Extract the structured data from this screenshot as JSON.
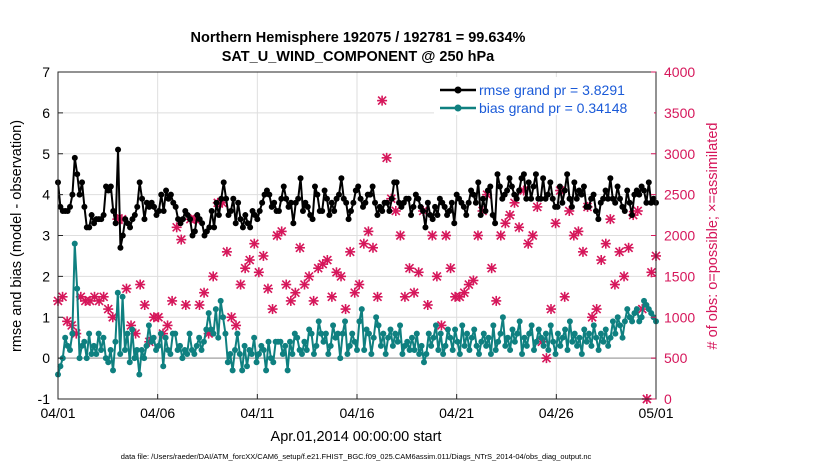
{
  "chart_data": {
    "type": "line",
    "title": "Northern Hemisphere 192075 / 192781 = 99.634%",
    "subtitle": "SAT_U_WIND_COMPONENT @ 250 hPa",
    "xlabel": "Apr.01,2014 00:00:00 start",
    "ylabel": "rmse and bias (model - observation)",
    "y2label": "# of obs: o=possible; ×=assimilated",
    "footer": "data file: /Users/raeder/DAI/ATM_forcXX/CAM6_setup/f.e21.FHIST_BGC.f09_025.CAM6assim.011/Diags_NTrS_2014-04/obs_diag_output.nc",
    "xticks": [
      "04/01",
      "04/06",
      "04/11",
      "04/16",
      "04/21",
      "04/26",
      "05/01"
    ],
    "xlim": [
      0,
      30
    ],
    "ylim": [
      -1,
      7
    ],
    "yticks": [
      "-1",
      "0",
      "1",
      "2",
      "3",
      "4",
      "5",
      "6",
      "7"
    ],
    "y2lim": [
      0,
      4000
    ],
    "y2ticks": [
      "0",
      "500",
      "1000",
      "1500",
      "2000",
      "2500",
      "3000",
      "3500",
      "4000"
    ],
    "grid": true,
    "legend_position": "top-right",
    "colors": {
      "rmse": "#000000",
      "bias": "#0f8080",
      "obs": "#d6175b",
      "zero_line": "#b0b0b0",
      "legend_text": "#1a5ad8"
    },
    "series": [
      {
        "name": "rmse",
        "legend": "rmse grand pr = 3.8291",
        "values": [
          4.3,
          3.7,
          3.6,
          3.6,
          3.6,
          3.7,
          4.0,
          4.9,
          4.5,
          4.0,
          4.3,
          3.7,
          3.2,
          3.2,
          3.5,
          3.3,
          3.4,
          3.4,
          3.4,
          3.5,
          4.2,
          4.1,
          4.2,
          3.6,
          3.3,
          5.1,
          2.7,
          3.0,
          3.4,
          3.3,
          3.2,
          3.4,
          3.5,
          3.7,
          4.3,
          3.9,
          3.4,
          3.8,
          3.7,
          3.8,
          3.7,
          3.5,
          3.6,
          4.0,
          3.6,
          4.1,
          3.9,
          4.0,
          3.8,
          3.7,
          3.4,
          3.3,
          3.4,
          3.6,
          3.5,
          3.4,
          3.0,
          3.1,
          3.5,
          3.4,
          3.3,
          3.0,
          3.1,
          3.2,
          3.6,
          3.2,
          3.8,
          3.5,
          3.9,
          4.3,
          3.9,
          3.5,
          3.6,
          3.9,
          3.3,
          3.8,
          3.4,
          3.2,
          3.5,
          3.3,
          3.2,
          3.6,
          3.5,
          3.4,
          3.6,
          3.8,
          4.0,
          4.1,
          4.0,
          3.7,
          3.8,
          3.6,
          3.6,
          3.9,
          4.2,
          3.9,
          3.7,
          3.8,
          3.3,
          3.8,
          3.9,
          4.4,
          3.6,
          3.8,
          3.7,
          3.5,
          3.4,
          4.2,
          4.0,
          3.6,
          3.6,
          4.1,
          3.9,
          3.5,
          3.8,
          3.6,
          3.9,
          4.0,
          4.4,
          3.9,
          3.8,
          3.4,
          3.6,
          3.8,
          4.1,
          4.2,
          3.9,
          3.7,
          3.8,
          4.0,
          4.0,
          4.2,
          3.8,
          3.5,
          3.7,
          3.6,
          3.8,
          3.8,
          3.6,
          3.9,
          4.3,
          4.3,
          3.8,
          3.7,
          3.8,
          3.9,
          3.9,
          3.5,
          3.7,
          4.0,
          3.9,
          3.7,
          3.6,
          3.2,
          3.8,
          3.5,
          3.4,
          3.7,
          3.5,
          3.9,
          3.8,
          3.7,
          3.5,
          3.6,
          3.8,
          3.3,
          4.0,
          3.9,
          3.8,
          3.7,
          3.5,
          3.8,
          4.1,
          4.0,
          3.8,
          4.3,
          3.5,
          3.9,
          3.6,
          4.1,
          4.2,
          3.5,
          3.3,
          4.5,
          4.2,
          3.9,
          4.0,
          4.1,
          4.4,
          4.2,
          4.0,
          3.9,
          4.1,
          4.4,
          4.5,
          3.9,
          4.3,
          3.9,
          4.2,
          4.5,
          3.9,
          3.9,
          4.4,
          3.9,
          4.0,
          4.3,
          3.9,
          3.7,
          3.7,
          4.2,
          3.8,
          4.1,
          4.5,
          3.9,
          3.7,
          4.3,
          3.9,
          4.1,
          4.0,
          4.2,
          3.7,
          3.7,
          3.9,
          4.0,
          3.6,
          3.4,
          3.8,
          3.9,
          4.1,
          3.9,
          4.4,
          3.9,
          3.8,
          4.2,
          3.9,
          3.7,
          3.6,
          4.1,
          3.8,
          3.5,
          4.0,
          4.1,
          4.0,
          4.2,
          4.1,
          3.8,
          4.3,
          3.8,
          3.9,
          3.8
        ]
      },
      {
        "name": "bias",
        "legend": "bias grand pr = 0.34148",
        "values": [
          -0.4,
          -0.2,
          0.0,
          0.5,
          0.3,
          0.2,
          0.6,
          2.8,
          1.7,
          0.0,
          0.3,
          0.4,
          0.0,
          0.6,
          0.1,
          0.3,
          0.1,
          0.6,
          0.2,
          0.5,
          0.0,
          -0.1,
          0.2,
          -0.3,
          0.4,
          1.6,
          0.1,
          1.5,
          0.2,
          0.6,
          -0.1,
          0.7,
          0.0,
          0.2,
          -0.4,
          0.2,
          0.0,
          0.3,
          0.8,
          0.4,
          0.5,
          0.2,
          0.3,
          0.6,
          -0.2,
          0.5,
          0.2,
          0.1,
          0.6,
          0.6,
          0.2,
          0.3,
          0.0,
          0.2,
          0.1,
          0.6,
          0.2,
          0.1,
          0.3,
          0.5,
          0.2,
          0.4,
          0.7,
          1.1,
          0.7,
          0.6,
          1.2,
          0.5,
          1.4,
          1.0,
          0.6,
          -0.1,
          0.1,
          -0.3,
          0.2,
          0.6,
          0.1,
          -0.3,
          0.3,
          -0.2,
          0.2,
          0.1,
          0.5,
          -0.1,
          0.1,
          0.3,
          0.2,
          -0.3,
          0.4,
          0.0,
          -0.1,
          0.4,
          0.4,
          0.4,
          0.1,
          0.3,
          -0.3,
          0.4,
          0.1,
          0.6,
          0.5,
          0.2,
          0.1,
          0.4,
          0.2,
          0.7,
          0.6,
          0.1,
          0.3,
          0.9,
          0.6,
          0.4,
          0.6,
          0.1,
          0.3,
          0.8,
          0.5,
          0.6,
          0.0,
          0.6,
          0.9,
          0.1,
          0.3,
          0.6,
          0.4,
          0.2,
          0.9,
          1.2,
          0.2,
          0.7,
          0.6,
          0.1,
          0.5,
          1.0,
          0.8,
          0.3,
          0.6,
          0.1,
          0.5,
          0.7,
          0.3,
          0.6,
          0.4,
          0.8,
          0.1,
          0.3,
          0.4,
          0.2,
          0.5,
          0.2,
          0.6,
          0.1,
          0.3,
          -0.1,
          0.1,
          0.6,
          0.3,
          0.5,
          0.8,
          0.2,
          0.6,
          0.1,
          0.3,
          0.7,
          0.5,
          0.2,
          0.7,
          0.4,
          0.1,
          0.8,
          0.3,
          0.6,
          0.2,
          0.5,
          0.7,
          0.3,
          0.1,
          0.4,
          0.6,
          0.3,
          0.5,
          0.1,
          0.8,
          0.2,
          0.4,
          0.6,
          1.0,
          0.3,
          0.5,
          0.2,
          0.7,
          0.4,
          0.6,
          0.9,
          0.1,
          0.5,
          0.3,
          0.6,
          0.8,
          0.2,
          0.4,
          0.7,
          0.5,
          0.3,
          0.6,
          0.2,
          0.8,
          0.4,
          0.1,
          0.6,
          0.3,
          0.5,
          0.7,
          0.2,
          0.9,
          0.4,
          0.6,
          0.3,
          0.5,
          0.1,
          0.7,
          0.4,
          0.6,
          0.3,
          0.8,
          0.5,
          0.2,
          0.6,
          0.4,
          0.7,
          0.3,
          0.5,
          0.9,
          0.6,
          1.0,
          0.8,
          0.5,
          0.9,
          1.2,
          1.0,
          0.9,
          1.1,
          1.2,
          0.9,
          1.0,
          1.4,
          1.3,
          1.2,
          1.1,
          1.0,
          0.9
        ]
      },
      {
        "name": "assimilated",
        "values": [
          1200,
          1250,
          950,
          900,
          800,
          1250,
          1200,
          1200,
          1250,
          1200,
          1250,
          1100,
          1000,
          2200,
          2200,
          1350,
          900,
          800,
          1400,
          1150,
          700,
          1000,
          1000,
          800,
          900,
          1200,
          2100,
          1950,
          1150,
          2200,
          2200,
          1150,
          1300,
          800,
          1500,
          2400,
          2400,
          1800,
          1000,
          900,
          1400,
          1600,
          1700,
          1900,
          1550,
          1750,
          1350,
          1100,
          2000,
          2050,
          1400,
          1200,
          1300,
          1850,
          1400,
          1500,
          1200,
          1600,
          1650,
          1700,
          1250,
          1550,
          1500,
          1100,
          1800,
          1300,
          1400,
          1900,
          2050,
          1850,
          1250,
          3650,
          2950,
          2450,
          2300,
          2000,
          1250,
          1600,
          1300,
          1550,
          2300,
          1150,
          2000,
          1500,
          900,
          2000,
          1600,
          1250,
          1250,
          1300,
          1400,
          1450,
          2000,
          2300,
          2500,
          1600,
          1200,
          2000,
          2150,
          2250,
          2400,
          2100,
          2550,
          1900,
          2000,
          2350,
          700,
          500,
          1100,
          2150,
          2550,
          1250,
          2300,
          2000,
          2050,
          1800,
          2350,
          1000,
          1100,
          1700,
          1900,
          2200,
          1400,
          1800,
          1500,
          1850,
          2250,
          2300,
          1100,
          0,
          1550,
          1750
        ]
      }
    ]
  }
}
